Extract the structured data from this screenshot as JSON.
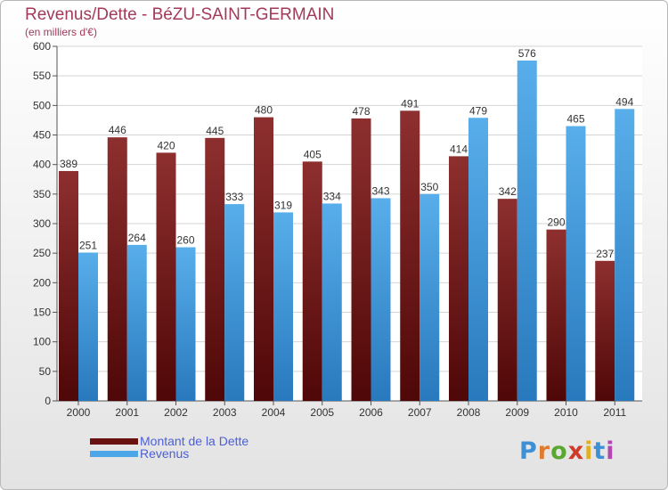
{
  "header": {
    "title": "Revenus/Dette - BéZU-SAINT-GERMAIN",
    "subtitle": "(en milliers d'€)"
  },
  "colors": {
    "dette": "#7a1e1e",
    "revenus": "#4da6e8",
    "title": "#a23a5a",
    "legend_text": "#4b5fd8"
  },
  "logo": {
    "letters": [
      "P",
      "r",
      "o",
      "x",
      "i",
      "t",
      "i"
    ],
    "colors": [
      "#3d8fd6",
      "#e07a2e",
      "#5aa832",
      "#d03a2a",
      "#e0b020",
      "#3d8fd6",
      "#b048b0"
    ]
  },
  "chart_data": {
    "type": "bar",
    "title": "Revenus/Dette - BéZU-SAINT-GERMAIN",
    "subtitle": "(en milliers d'€)",
    "categories": [
      "2000",
      "2001",
      "2002",
      "2003",
      "2004",
      "2005",
      "2006",
      "2007",
      "2008",
      "2009",
      "2010",
      "2011"
    ],
    "series": [
      {
        "name": "Montant de la Dette",
        "color": "#7a1e1e",
        "values": [
          389,
          446,
          420,
          445,
          480,
          405,
          478,
          491,
          414,
          342,
          290,
          237
        ]
      },
      {
        "name": "Revenus",
        "color": "#4da6e8",
        "values": [
          251,
          264,
          260,
          333,
          319,
          334,
          343,
          350,
          479,
          576,
          465,
          494
        ]
      }
    ],
    "yticks": [
      0,
      50,
      100,
      150,
      200,
      250,
      300,
      350,
      400,
      450,
      500,
      550,
      600
    ],
    "ylim": [
      0,
      600
    ],
    "grid": true,
    "legend": "bottom-left"
  }
}
